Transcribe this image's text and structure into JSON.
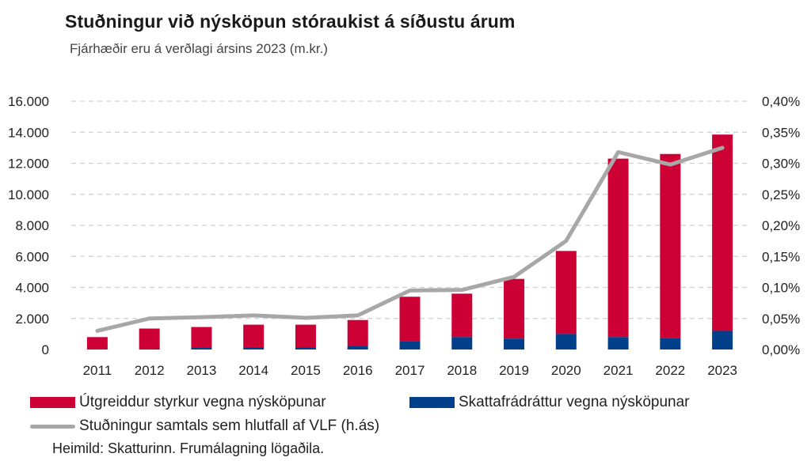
{
  "title": "Stuðningur við nýsköpun stóraukist á síðustu árum",
  "subtitle": "Fjárhæðir eru á verðlagi ársins 2023 (m.kr.)",
  "source": "Heimild: Skatturinn. Frumálagning lögaðila.",
  "colors": {
    "grant": "#cc0035",
    "tax": "#003f8a",
    "share": "#a7a7a7",
    "grid": "#d0d0d0"
  },
  "chart_data": {
    "type": "bar",
    "stacked": true,
    "categories": [
      "2011",
      "2012",
      "2013",
      "2014",
      "2015",
      "2016",
      "2017",
      "2018",
      "2019",
      "2020",
      "2021",
      "2022",
      "2023"
    ],
    "series": [
      {
        "name": "Skattafrádráttur vegna nýsköpunar",
        "axis": "left",
        "values": [
          0,
          50,
          100,
          150,
          150,
          250,
          550,
          800,
          700,
          1000,
          800,
          750,
          1200
        ]
      },
      {
        "name": "Útgreiddur styrkur vegna nýsköpunar",
        "axis": "left",
        "values": [
          800,
          1300,
          1350,
          1450,
          1450,
          1650,
          2850,
          2800,
          3850,
          5350,
          11500,
          11850,
          12650
        ]
      },
      {
        "name": "Stuðningur samtals sem hlutfall af VLF (h.ás)",
        "axis": "right",
        "kind": "line",
        "values": [
          0.03,
          0.05,
          0.052,
          0.055,
          0.051,
          0.055,
          0.095,
          0.096,
          0.117,
          0.175,
          0.318,
          0.298,
          0.325
        ]
      }
    ],
    "ylim": [
      0,
      16000
    ],
    "y_ticks": [
      "0",
      "2.000",
      "4.000",
      "6.000",
      "8.000",
      "10.000",
      "12.000",
      "14.000",
      "16.000"
    ],
    "y2lim": [
      0,
      0.4
    ],
    "y2_ticks": [
      "0,00%",
      "0,05%",
      "0,10%",
      "0,15%",
      "0,20%",
      "0,25%",
      "0,30%",
      "0,35%",
      "0,40%"
    ],
    "grid": true,
    "legend_position": "bottom"
  },
  "legend": {
    "grant": "Útgreiddur styrkur vegna nýsköpunar",
    "tax": "Skattafrádráttur vegna nýsköpunar",
    "share": "Stuðningur samtals sem hlutfall af VLF (h.ás)"
  }
}
